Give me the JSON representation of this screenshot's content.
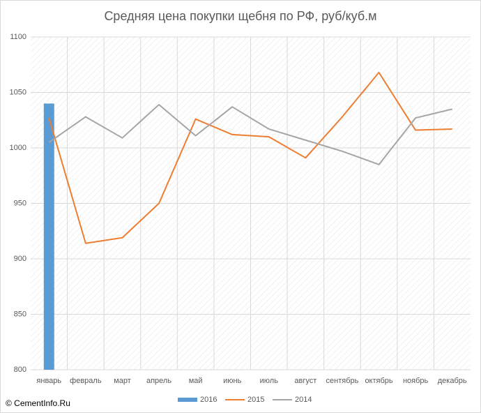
{
  "chart_data": {
    "type": "combo",
    "title": "Средняя цена покупки щебня по РФ, руб/куб.м",
    "categories": [
      "январь",
      "февраль",
      "март",
      "апрель",
      "май",
      "июнь",
      "июль",
      "август",
      "сентябрь",
      "октябрь",
      "ноябрь",
      "декабрь"
    ],
    "series": [
      {
        "name": "2016",
        "type": "bar",
        "color": "#5b9bd5",
        "values": [
          1040,
          null,
          null,
          null,
          null,
          null,
          null,
          null,
          null,
          null,
          null,
          null
        ]
      },
      {
        "name": "2015",
        "type": "line",
        "color": "#ed7d31",
        "values": [
          1027,
          914,
          919,
          950,
          1026,
          1012,
          1010,
          991,
          1028,
          1068,
          1016,
          1017
        ]
      },
      {
        "name": "2014",
        "type": "line",
        "color": "#a5a5a5",
        "values": [
          1005,
          1028,
          1009,
          1039,
          1011,
          1037,
          1017,
          1007,
          997,
          985,
          1027,
          1035
        ]
      }
    ],
    "ylim": [
      800,
      1100
    ],
    "yticks": [
      800,
      850,
      900,
      950,
      1000,
      1050,
      1100
    ],
    "grid": true,
    "legend": "bottom",
    "footer": "© CementInfo.Ru"
  }
}
